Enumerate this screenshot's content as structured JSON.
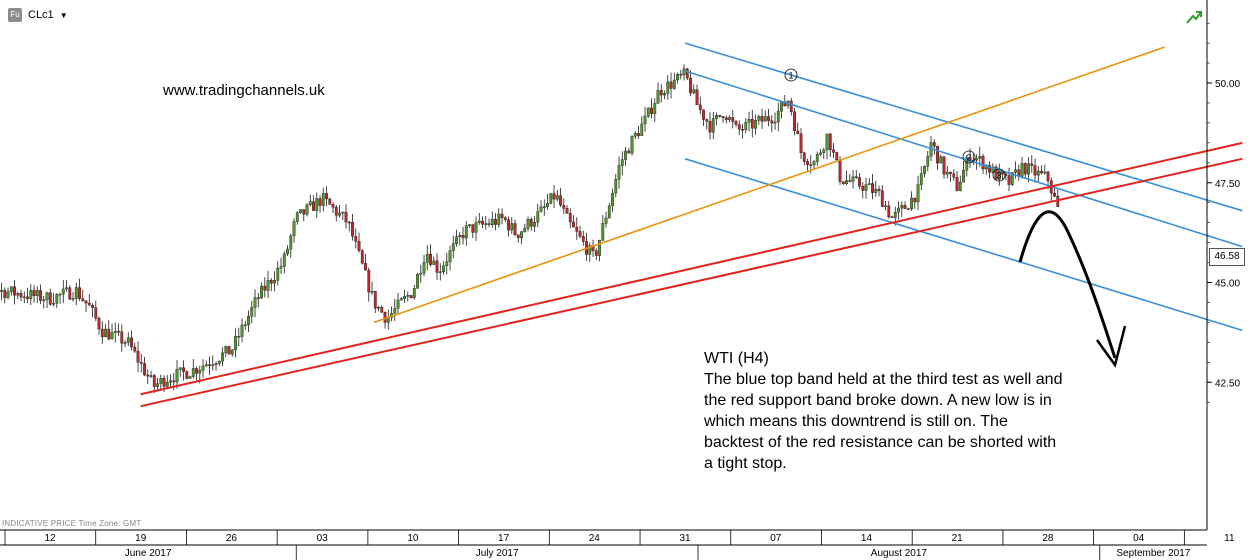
{
  "toolbar": {
    "badge": "Fu",
    "symbol": "CLc1",
    "caret": "▼"
  },
  "watermark": "www.tradingchannels.uk",
  "annotation": {
    "title": "WTI (H4)",
    "body": "The blue top band held at the third test as well and the red support band broke down. A new low is in which means this downtrend is still on. The backtest of the red resistance can be shorted with a tight stop."
  },
  "footnote": "INDICATIVE PRICE   Time Zone: GMT",
  "last_price": "46.58",
  "icons": {
    "trend": "green-trend-arrow-icon",
    "forecast": "forecast-arrow-icon"
  },
  "colors": {
    "blue_channel": "#3a8fd6",
    "red_band": "#e3231c",
    "orange_line": "#e8930c",
    "bull": "#4c9a2a",
    "bear": "#c0282a"
  },
  "chart_data": {
    "type": "candlestick",
    "title": "",
    "y_ticks": [
      "50.00",
      "47.50",
      "45.00",
      "42.50"
    ],
    "ylim": [
      41.3,
      51.6
    ],
    "x_day_ticks": [
      "12",
      "19",
      "26",
      "03",
      "10",
      "17",
      "24",
      "31",
      "07",
      "14",
      "21",
      "28",
      "04",
      "11"
    ],
    "x_month_labels": [
      "June 2017",
      "July 2017",
      "August 2017",
      "September 2017"
    ],
    "xlim": [
      "2017-06-05",
      "2017-09-12"
    ],
    "price_path": [
      [
        "2017-06-05",
        46.2
      ],
      [
        "2017-06-07",
        46.0
      ],
      [
        "2017-06-08",
        44.8
      ],
      [
        "2017-06-12",
        44.6
      ],
      [
        "2017-06-14",
        44.8
      ],
      [
        "2017-06-15",
        44.4
      ],
      [
        "2017-06-16",
        43.8
      ],
      [
        "2017-06-18",
        43.5
      ],
      [
        "2017-06-20",
        42.4
      ],
      [
        "2017-06-21",
        42.6
      ],
      [
        "2017-06-23",
        42.8
      ],
      [
        "2017-06-26",
        43.3
      ],
      [
        "2017-06-28",
        44.6
      ],
      [
        "2017-06-30",
        45.5
      ],
      [
        "2017-07-01",
        46.6
      ],
      [
        "2017-07-03",
        47.1
      ],
      [
        "2017-07-05",
        46.5
      ],
      [
        "2017-07-06",
        45.5
      ],
      [
        "2017-07-07",
        44.5
      ],
      [
        "2017-07-08",
        44.1
      ],
      [
        "2017-07-10",
        44.8
      ],
      [
        "2017-07-11",
        45.8
      ],
      [
        "2017-07-12",
        45.3
      ],
      [
        "2017-07-14",
        46.3
      ],
      [
        "2017-07-17",
        46.6
      ],
      [
        "2017-07-18",
        46.2
      ],
      [
        "2017-07-20",
        46.8
      ],
      [
        "2017-07-21",
        47.2
      ],
      [
        "2017-07-22",
        46.5
      ],
      [
        "2017-07-24",
        45.6
      ],
      [
        "2017-07-25",
        46.8
      ],
      [
        "2017-07-26",
        48.0
      ],
      [
        "2017-07-27",
        48.6
      ],
      [
        "2017-07-28",
        49.1
      ],
      [
        "2017-07-29",
        49.8
      ],
      [
        "2017-07-31",
        50.2
      ],
      [
        "2017-08-01",
        49.4
      ],
      [
        "2017-08-02",
        48.9
      ],
      [
        "2017-08-03",
        49.3
      ],
      [
        "2017-08-04",
        48.8
      ],
      [
        "2017-08-07",
        49.2
      ],
      [
        "2017-08-08",
        49.6
      ],
      [
        "2017-08-09",
        48.2
      ],
      [
        "2017-08-10",
        48.0
      ],
      [
        "2017-08-11",
        48.7
      ],
      [
        "2017-08-12",
        47.6
      ],
      [
        "2017-08-14",
        47.4
      ],
      [
        "2017-08-15",
        47.2
      ],
      [
        "2017-08-16",
        46.6
      ],
      [
        "2017-08-17",
        46.9
      ],
      [
        "2017-08-18",
        47.3
      ],
      [
        "2017-08-19",
        48.5
      ],
      [
        "2017-08-20",
        47.8
      ],
      [
        "2017-08-21",
        47.4
      ],
      [
        "2017-08-22",
        48.2
      ],
      [
        "2017-08-23",
        48.0
      ],
      [
        "2017-08-24",
        47.7
      ],
      [
        "2017-08-25",
        47.5
      ],
      [
        "2017-08-26",
        47.9
      ],
      [
        "2017-08-28",
        47.6
      ],
      [
        "2017-08-29",
        46.6
      ]
    ],
    "trendlines": [
      {
        "color": "blue",
        "from": [
          "2017-07-31",
          51.0
        ],
        "to": [
          "2017-09-12",
          46.8
        ]
      },
      {
        "color": "blue",
        "from": [
          "2017-07-31",
          50.3
        ],
        "to": [
          "2017-09-12",
          45.9
        ]
      },
      {
        "color": "blue",
        "from": [
          "2017-07-31",
          48.1
        ],
        "to": [
          "2017-09-12",
          43.8
        ]
      },
      {
        "color": "red",
        "from": [
          "2017-06-19",
          42.2
        ],
        "to": [
          "2017-09-12",
          48.5
        ]
      },
      {
        "color": "red",
        "from": [
          "2017-06-19",
          41.9
        ],
        "to": [
          "2017-09-12",
          48.1
        ]
      },
      {
        "color": "orange",
        "from": [
          "2017-07-07",
          44.0
        ],
        "to": [
          "2017-09-06",
          50.9
        ]
      }
    ],
    "test_markers": [
      "1",
      "2",
      "3"
    ],
    "legend": "none",
    "grid": false
  }
}
